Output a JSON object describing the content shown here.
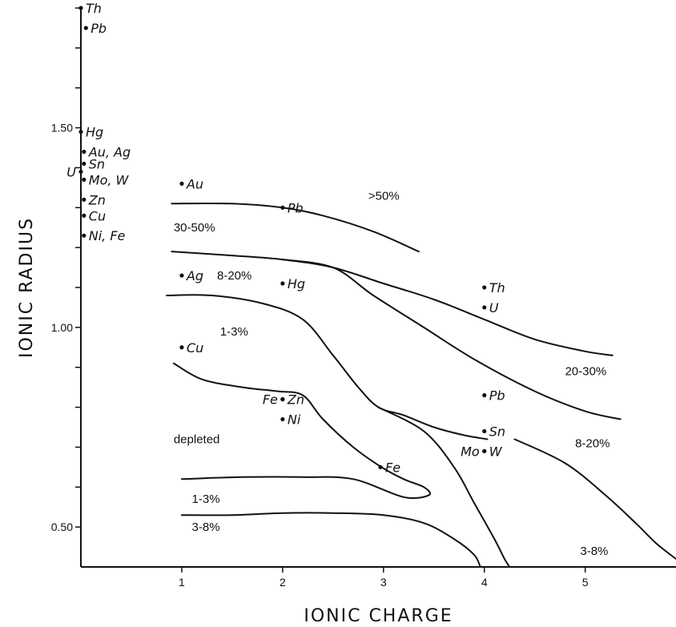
{
  "chart_data": {
    "type": "scatter",
    "xlabel": "IONIC CHARGE",
    "ylabel": "IONIC RADIUS",
    "xlim": [
      0,
      5.9
    ],
    "ylim": [
      0.4,
      1.8
    ],
    "x_ticks": [
      1,
      2,
      3,
      4,
      5
    ],
    "y_tick_labels": [
      {
        "value": 0.5,
        "label": "0.50"
      },
      {
        "value": 1.0,
        "label": "1.00"
      },
      {
        "value": 1.5,
        "label": "1.50"
      }
    ],
    "y_minor_ticks": [
      0.5,
      0.6,
      0.7,
      0.8,
      0.9,
      1.0,
      1.1,
      1.2,
      1.3,
      1.4,
      1.5,
      1.6,
      1.7,
      1.8
    ],
    "grid": false,
    "points": [
      {
        "label": "Th",
        "x": 0,
        "y": 1.8,
        "label_side": "right"
      },
      {
        "label": "Pb",
        "x": 0.05,
        "y": 1.75,
        "label_side": "right"
      },
      {
        "label": "Hg",
        "x": 0,
        "y": 1.49,
        "label_side": "right"
      },
      {
        "label": "Au, Ag",
        "x": 0.03,
        "y": 1.44,
        "label_side": "right"
      },
      {
        "label": "Sn",
        "x": 0.03,
        "y": 1.41,
        "label_side": "right"
      },
      {
        "label": "U",
        "x": 0,
        "y": 1.39,
        "label_side": "left"
      },
      {
        "label": "Mo, W",
        "x": 0.03,
        "y": 1.37,
        "label_side": "right"
      },
      {
        "label": "Zn",
        "x": 0.03,
        "y": 1.32,
        "label_side": "right"
      },
      {
        "label": "Cu",
        "x": 0.03,
        "y": 1.28,
        "label_side": "right"
      },
      {
        "label": "Ni, Fe",
        "x": 0.03,
        "y": 1.23,
        "label_side": "right"
      },
      {
        "label": "Au",
        "x": 1.0,
        "y": 1.36,
        "label_side": "right"
      },
      {
        "label": "Pb",
        "x": 2.0,
        "y": 1.3,
        "label_side": "right"
      },
      {
        "label": "Ag",
        "x": 1.0,
        "y": 1.13,
        "label_side": "right"
      },
      {
        "label": "Hg",
        "x": 2.0,
        "y": 1.11,
        "label_side": "right"
      },
      {
        "label": "Th",
        "x": 4.0,
        "y": 1.1,
        "label_side": "right"
      },
      {
        "label": "U",
        "x": 4.0,
        "y": 1.05,
        "label_side": "right"
      },
      {
        "label": "Cu",
        "x": 1.0,
        "y": 0.95,
        "label_side": "right"
      },
      {
        "label": "Fe",
        "x": 2.0,
        "y": 0.82,
        "label_side": "left"
      },
      {
        "label": "Zn",
        "x": 2.0,
        "y": 0.82,
        "label_side": "right"
      },
      {
        "label": "Ni",
        "x": 2.0,
        "y": 0.77,
        "label_side": "right"
      },
      {
        "label": "Pb",
        "x": 4.0,
        "y": 0.83,
        "label_side": "right"
      },
      {
        "label": "Sn",
        "x": 4.0,
        "y": 0.74,
        "label_side": "right"
      },
      {
        "label": "Mo",
        "x": 4.0,
        "y": 0.69,
        "label_side": "left"
      },
      {
        "label": "W",
        "x": 4.0,
        "y": 0.69,
        "label_side": "right"
      },
      {
        "label": "Fe",
        "x": 2.97,
        "y": 0.65,
        "label_side": "right"
      }
    ],
    "curves": [
      [
        [
          0.9,
          1.31
        ],
        [
          1.5,
          1.31
        ],
        [
          2.0,
          1.3
        ],
        [
          2.4,
          1.28
        ],
        [
          2.9,
          1.24
        ],
        [
          3.35,
          1.19
        ]
      ],
      [
        [
          0.9,
          1.19
        ],
        [
          1.5,
          1.18
        ],
        [
          2.0,
          1.17
        ],
        [
          2.5,
          1.15
        ],
        [
          3.0,
          1.11
        ],
        [
          3.5,
          1.07
        ],
        [
          4.0,
          1.02
        ],
        [
          4.5,
          0.97
        ],
        [
          5.0,
          0.94
        ],
        [
          5.27,
          0.93
        ]
      ],
      [
        [
          2.0,
          1.17
        ],
        [
          2.5,
          1.15
        ],
        [
          2.9,
          1.08
        ],
        [
          3.4,
          1.0
        ],
        [
          3.9,
          0.92
        ],
        [
          4.5,
          0.84
        ],
        [
          5.0,
          0.79
        ],
        [
          5.35,
          0.77
        ]
      ],
      [
        [
          0.85,
          1.08
        ],
        [
          1.3,
          1.08
        ],
        [
          1.8,
          1.06
        ],
        [
          2.2,
          1.02
        ],
        [
          2.5,
          0.93
        ],
        [
          2.75,
          0.85
        ],
        [
          2.95,
          0.8
        ],
        [
          3.2,
          0.78
        ],
        [
          3.5,
          0.75
        ],
        [
          3.8,
          0.73
        ],
        [
          4.03,
          0.72
        ]
      ],
      [
        [
          0.92,
          0.91
        ],
        [
          1.2,
          0.87
        ],
        [
          1.6,
          0.85
        ],
        [
          1.95,
          0.84
        ],
        [
          2.2,
          0.83
        ],
        [
          2.4,
          0.77
        ],
        [
          2.7,
          0.7
        ],
        [
          2.98,
          0.65
        ],
        [
          3.2,
          0.62
        ],
        [
          3.4,
          0.6
        ],
        [
          3.45,
          0.58
        ],
        [
          3.2,
          0.575
        ],
        [
          2.7,
          0.62
        ],
        [
          2.2,
          0.625
        ],
        [
          1.6,
          0.625
        ],
        [
          1.0,
          0.62
        ]
      ],
      [
        [
          2.95,
          0.8
        ],
        [
          3.4,
          0.74
        ],
        [
          3.7,
          0.65
        ],
        [
          3.9,
          0.56
        ],
        [
          4.1,
          0.47
        ],
        [
          4.2,
          0.42
        ],
        [
          4.25,
          0.4
        ]
      ],
      [
        [
          1.0,
          0.53
        ],
        [
          1.5,
          0.53
        ],
        [
          2.0,
          0.535
        ],
        [
          2.5,
          0.535
        ],
        [
          3.0,
          0.53
        ],
        [
          3.4,
          0.51
        ],
        [
          3.7,
          0.47
        ],
        [
          3.9,
          0.43
        ],
        [
          3.96,
          0.4
        ]
      ],
      [
        [
          4.3,
          0.72
        ],
        [
          4.8,
          0.66
        ],
        [
          5.2,
          0.58
        ],
        [
          5.5,
          0.51
        ],
        [
          5.7,
          0.46
        ],
        [
          5.9,
          0.42
        ]
      ]
    ],
    "region_labels": [
      {
        "text": ">50%",
        "x": 2.85,
        "y": 1.32
      },
      {
        "text": "30-50%",
        "x": 0.92,
        "y": 1.24
      },
      {
        "text": "8-20%",
        "x": 1.35,
        "y": 1.12
      },
      {
        "text": "1-3%",
        "x": 1.38,
        "y": 0.98
      },
      {
        "text": "20-30%",
        "x": 4.8,
        "y": 0.88
      },
      {
        "text": "8-20%",
        "x": 4.9,
        "y": 0.7
      },
      {
        "text": "depleted",
        "x": 0.92,
        "y": 0.71
      },
      {
        "text": "1-3%",
        "x": 1.1,
        "y": 0.56
      },
      {
        "text": "3-8%",
        "x": 1.1,
        "y": 0.49
      },
      {
        "text": "3-8%",
        "x": 4.95,
        "y": 0.43
      }
    ]
  }
}
